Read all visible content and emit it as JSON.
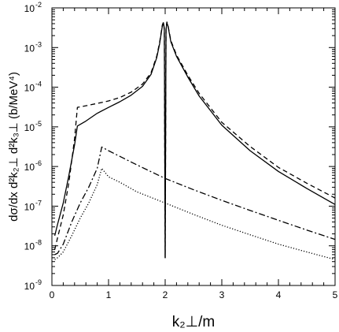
{
  "chart_data": {
    "type": "line",
    "xlabel": "k₂⊥/m",
    "ylabel": "dσ/dx d²k₂⊥ d²k₃⊥ (b/MeV⁴)",
    "xlim": [
      0,
      5
    ],
    "ylim_exp": [
      -9,
      -2
    ],
    "yscale": "log",
    "grid": false,
    "legend": "none",
    "x_ticks": [
      "0",
      "1",
      "2",
      "3",
      "4",
      "5"
    ],
    "y_ticks": [
      {
        "base": "10",
        "exp": "-9"
      },
      {
        "base": "10",
        "exp": "-8"
      },
      {
        "base": "10",
        "exp": "-7"
      },
      {
        "base": "10",
        "exp": "-6"
      },
      {
        "base": "10",
        "exp": "-5"
      },
      {
        "base": "10",
        "exp": "-4"
      },
      {
        "base": "10",
        "exp": "-3"
      },
      {
        "base": "10",
        "exp": "-2"
      }
    ],
    "series": [
      {
        "style": "solid",
        "points": [
          [
            0.05,
            1.8e-08
          ],
          [
            0.1,
            3.5e-08
          ],
          [
            0.2,
            1.2e-07
          ],
          [
            0.3,
            6e-07
          ],
          [
            0.4,
            3.5e-06
          ],
          [
            0.45,
            1.05e-05
          ],
          [
            0.6,
            1.4e-05
          ],
          [
            0.8,
            2.2e-05
          ],
          [
            1.0,
            3.1e-05
          ],
          [
            1.2,
            4.3e-05
          ],
          [
            1.4,
            6.3e-05
          ],
          [
            1.6,
            0.000105
          ],
          [
            1.75,
            0.00021
          ],
          [
            1.85,
            0.00055
          ],
          [
            1.9,
            0.0012
          ],
          [
            1.95,
            0.0035
          ],
          [
            1.97,
            0.0042
          ],
          [
            1.985,
            0.0028
          ],
          [
            2.0,
            5e-09
          ],
          [
            2.015,
            0.0028
          ],
          [
            2.03,
            0.0042
          ],
          [
            2.05,
            0.0035
          ],
          [
            2.1,
            0.0014
          ],
          [
            2.2,
            0.0006
          ],
          [
            2.4,
            0.00018
          ],
          [
            2.6,
            6e-05
          ],
          [
            3.0,
            1.1e-05
          ],
          [
            3.5,
            2.5e-06
          ],
          [
            4.0,
            7.5e-07
          ],
          [
            4.5,
            2.8e-07
          ],
          [
            5.0,
            1.1e-07
          ]
        ]
      },
      {
        "style": "dashed",
        "points": [
          [
            0.05,
            8e-09
          ],
          [
            0.1,
            1.6e-08
          ],
          [
            0.2,
            6e-08
          ],
          [
            0.3,
            4e-07
          ],
          [
            0.4,
            5e-06
          ],
          [
            0.45,
            3.1e-05
          ],
          [
            0.6,
            3.4e-05
          ],
          [
            0.8,
            3.9e-05
          ],
          [
            1.0,
            4.5e-05
          ],
          [
            1.2,
            5.5e-05
          ],
          [
            1.4,
            7.5e-05
          ],
          [
            1.6,
            0.00012
          ],
          [
            1.75,
            0.00023
          ],
          [
            1.85,
            0.0006
          ],
          [
            1.9,
            0.0013
          ],
          [
            1.95,
            0.0037
          ],
          [
            1.97,
            0.0044
          ],
          [
            1.985,
            0.003
          ],
          [
            2.0,
            5e-09
          ],
          [
            2.015,
            0.003
          ],
          [
            2.03,
            0.0044
          ],
          [
            2.05,
            0.0036
          ],
          [
            2.1,
            0.0015
          ],
          [
            2.2,
            0.00065
          ],
          [
            2.4,
            0.0002
          ],
          [
            2.6,
            7e-05
          ],
          [
            3.0,
            1.3e-05
          ],
          [
            3.5,
            3.2e-06
          ],
          [
            4.0,
            9.5e-07
          ],
          [
            4.5,
            3.8e-07
          ],
          [
            5.0,
            1.6e-07
          ]
        ]
      },
      {
        "style": "dashdot",
        "points": [
          [
            0.05,
            6e-09
          ],
          [
            0.1,
            6.5e-09
          ],
          [
            0.2,
            1.1e-08
          ],
          [
            0.35,
            4e-08
          ],
          [
            0.5,
            1.2e-07
          ],
          [
            0.65,
            3e-07
          ],
          [
            0.8,
            9e-07
          ],
          [
            0.88,
            3.1e-06
          ],
          [
            1.0,
            2.5e-06
          ],
          [
            1.2,
            1.8e-06
          ],
          [
            1.5,
            1.1e-06
          ],
          [
            2.0,
            5e-07
          ],
          [
            2.5,
            2.6e-07
          ],
          [
            3.0,
            1.4e-07
          ],
          [
            3.5,
            7.8e-08
          ],
          [
            4.0,
            4.4e-08
          ],
          [
            4.5,
            2.5e-08
          ],
          [
            5.0,
            1.45e-08
          ]
        ]
      },
      {
        "style": "dotted",
        "points": [
          [
            0.05,
            4.5e-09
          ],
          [
            0.1,
            5e-09
          ],
          [
            0.2,
            7e-09
          ],
          [
            0.35,
            1.8e-08
          ],
          [
            0.5,
            5e-08
          ],
          [
            0.65,
            1.2e-07
          ],
          [
            0.8,
            3.5e-07
          ],
          [
            0.88,
            9e-07
          ],
          [
            1.0,
            5.5e-07
          ],
          [
            1.2,
            4e-07
          ],
          [
            1.5,
            2.3e-07
          ],
          [
            2.0,
            1.2e-07
          ],
          [
            2.5,
            6.2e-08
          ],
          [
            3.0,
            3.3e-08
          ],
          [
            3.5,
            1.9e-08
          ],
          [
            4.0,
            1.1e-08
          ],
          [
            4.5,
            7e-09
          ],
          [
            5.0,
            4.5e-09
          ]
        ]
      }
    ]
  }
}
